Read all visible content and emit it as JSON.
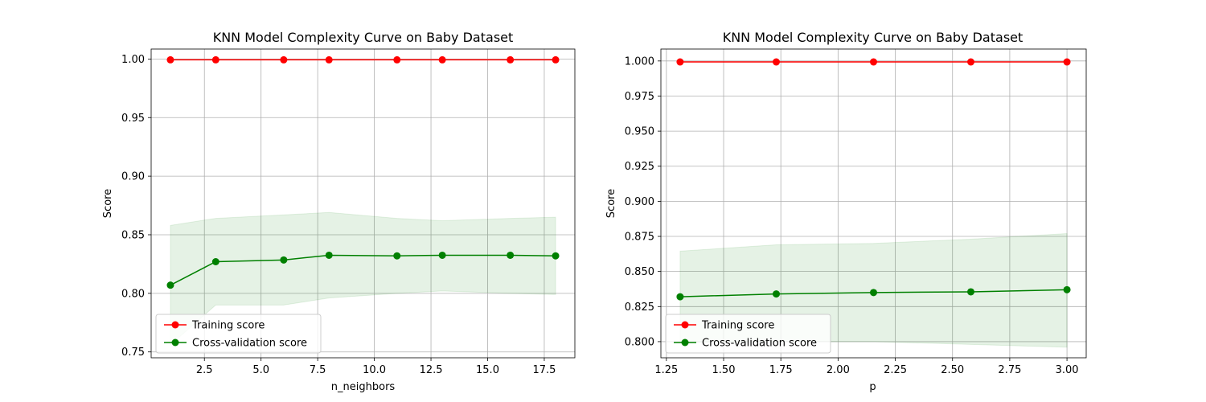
{
  "colors": {
    "train": "#ff0000",
    "cv": "#008000",
    "band": "#008000",
    "grid": "#b0b0b0",
    "axis": "#000000",
    "legend_border": "#cccccc"
  },
  "chart_data": [
    {
      "type": "line",
      "title": "KNN Model Complexity Curve on Baby Dataset",
      "xlabel": "n_neighbors",
      "ylabel": "Score",
      "xlim": [
        0.15,
        18.85
      ],
      "ylim": [
        0.745,
        1.0085
      ],
      "xticks": [
        2.5,
        5.0,
        7.5,
        10.0,
        12.5,
        15.0,
        17.5
      ],
      "xtick_labels": [
        "2.5",
        "5.0",
        "7.5",
        "10.0",
        "12.5",
        "15.0",
        "17.5"
      ],
      "yticks": [
        0.75,
        0.8,
        0.85,
        0.9,
        0.95,
        1.0
      ],
      "ytick_labels": [
        "0.75",
        "0.80",
        "0.85",
        "0.90",
        "0.95",
        "1.00"
      ],
      "grid": true,
      "legend_position": "lower-left",
      "x": [
        1,
        3,
        6,
        8,
        11,
        13,
        16,
        18
      ],
      "series": [
        {
          "name": "Training score",
          "values": [
            0.9993,
            0.9993,
            0.9993,
            0.9993,
            0.9993,
            0.9993,
            0.9993,
            0.9993
          ]
        },
        {
          "name": "Cross-validation score",
          "values": [
            0.807,
            0.827,
            0.8285,
            0.8325,
            0.832,
            0.8325,
            0.8325,
            0.832
          ],
          "band_upper": [
            0.858,
            0.864,
            0.867,
            0.869,
            0.864,
            0.862,
            0.864,
            0.865
          ],
          "band_lower": [
            0.756,
            0.79,
            0.79,
            0.796,
            0.8,
            0.802,
            0.8,
            0.799
          ]
        }
      ]
    },
    {
      "type": "line",
      "title": "KNN Model Complexity Curve on Baby Dataset",
      "xlabel": "p",
      "ylabel": "Score",
      "xlim": [
        1.226,
        3.084
      ],
      "ylim": [
        0.7885,
        1.0085
      ],
      "xticks": [
        1.25,
        1.5,
        1.75,
        2.0,
        2.25,
        2.5,
        2.75,
        3.0
      ],
      "xtick_labels": [
        "1.25",
        "1.50",
        "1.75",
        "2.00",
        "2.25",
        "2.50",
        "2.75",
        "3.00"
      ],
      "yticks": [
        0.8,
        0.825,
        0.85,
        0.875,
        0.9,
        0.925,
        0.95,
        0.975,
        1.0
      ],
      "ytick_labels": [
        "0.800",
        "0.825",
        "0.850",
        "0.875",
        "0.900",
        "0.925",
        "0.950",
        "0.975",
        "1.000"
      ],
      "grid": true,
      "legend_position": "lower-left",
      "x": [
        1.31,
        1.73,
        2.155,
        2.58,
        3.0
      ],
      "series": [
        {
          "name": "Training score",
          "values": [
            0.9993,
            0.9993,
            0.9993,
            0.9993,
            0.9993
          ]
        },
        {
          "name": "Cross-validation score",
          "values": [
            0.832,
            0.834,
            0.835,
            0.8355,
            0.837
          ],
          "band_upper": [
            0.8645,
            0.869,
            0.87,
            0.873,
            0.877
          ],
          "band_lower": [
            0.7995,
            0.8,
            0.8,
            0.798,
            0.796
          ]
        }
      ]
    }
  ]
}
